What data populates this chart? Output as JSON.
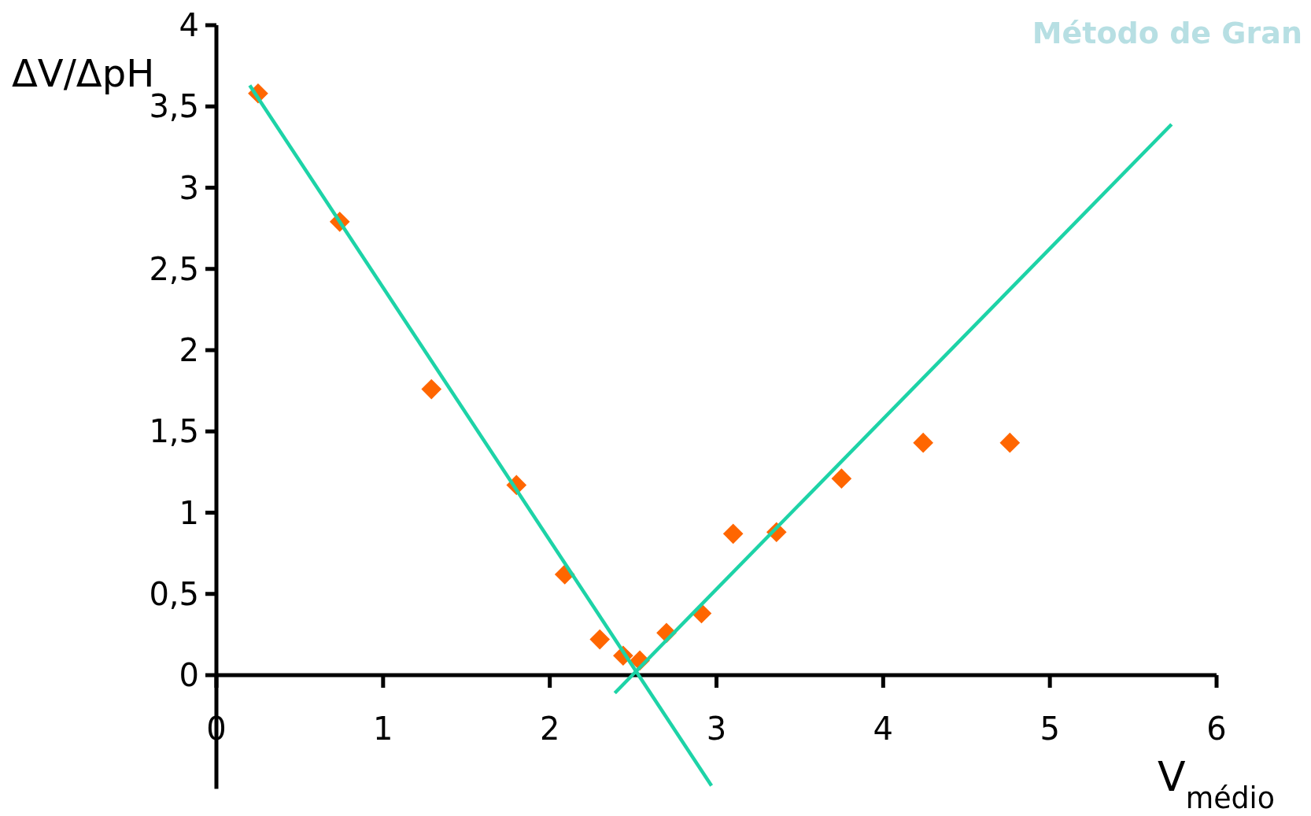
{
  "chart_data": {
    "type": "scatter",
    "title": "Método de Gran",
    "xlabel": "V$_{médio}$",
    "ylabel": "ΔV/ΔpH",
    "xlim": [
      0,
      6
    ],
    "xticks": [
      0,
      1,
      2,
      3,
      4,
      5,
      6
    ],
    "ylim": [
      -0.7,
      4
    ],
    "yticks": [
      0,
      {
        "value": 0.5,
        "label": "0,5"
      },
      1,
      {
        "value": 1.5,
        "label": "1,5"
      },
      2,
      {
        "value": 2.5,
        "label": "2,5"
      },
      3,
      {
        "value": 3.5,
        "label": "3,5"
      },
      4
    ],
    "grid": false,
    "series": [
      {
        "color": "#ff6600",
        "marker": "diamond",
        "x": [
          0.25,
          0.74,
          1.29,
          1.8,
          2.09,
          2.3,
          2.44,
          2.54,
          2.7,
          2.91,
          3.1,
          3.36,
          3.75,
          4.24,
          4.76
        ],
        "values": [
          3.58,
          2.79,
          1.76,
          1.17,
          0.62,
          0.22,
          0.12,
          0.09,
          0.26,
          0.38,
          0.87,
          0.88,
          1.21,
          1.43,
          1.43
        ]
      },
      {
        "type": "line",
        "color": "#1dd3a7",
        "marker": "none",
        "x": [
          0.2,
          2.97
        ],
        "values": [
          3.63,
          -0.68
        ]
      },
      {
        "type": "line",
        "color": "#1dd3a7",
        "marker": "none",
        "x": [
          2.39,
          5.73
        ],
        "values": [
          -0.11,
          3.39
        ]
      }
    ]
  }
}
